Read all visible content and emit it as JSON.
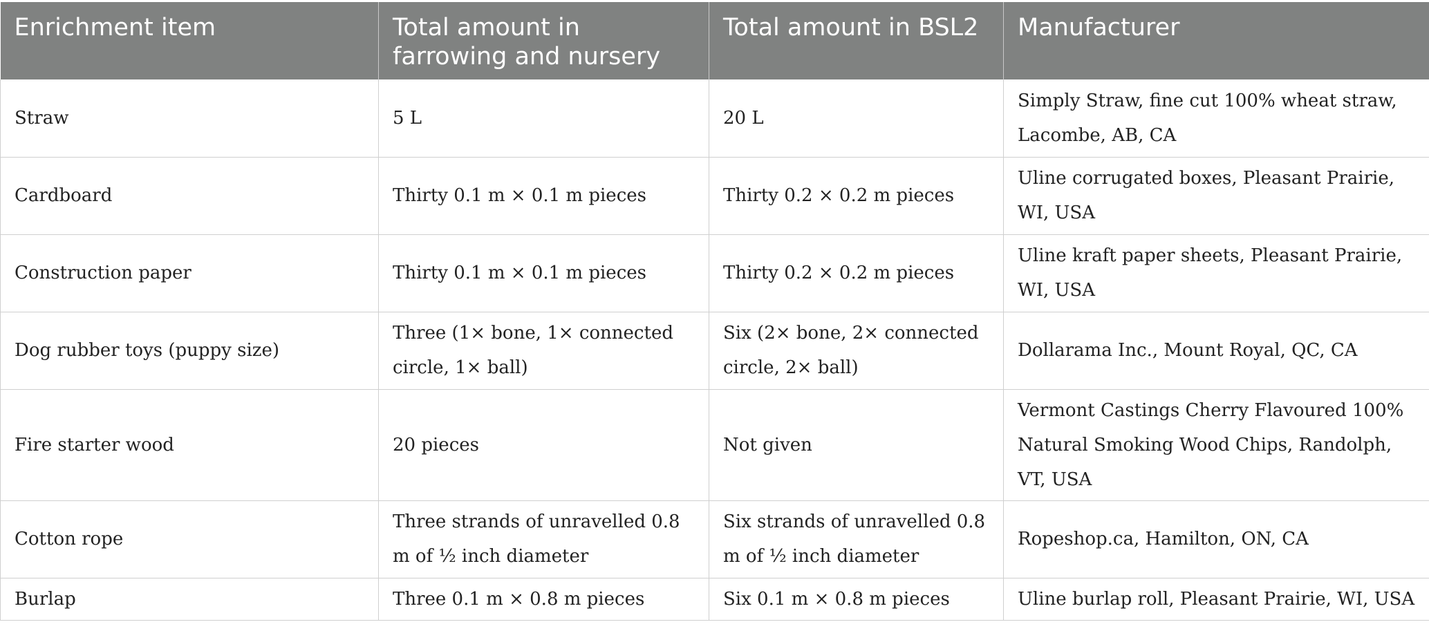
{
  "table": {
    "headers": [
      "Enrichment item",
      "Total amount in farrowing and nursery",
      "Total amount in BSL2",
      "Manufacturer"
    ],
    "rows": [
      {
        "item": "Straw",
        "farrowing_nursery": "5 L",
        "bsl2": "20 L",
        "manufacturer": "Simply Straw, fine cut 100% wheat straw, Lacombe, AB, CA"
      },
      {
        "item": "Cardboard",
        "farrowing_nursery": "Thirty 0.1 m × 0.1 m pieces",
        "bsl2": "Thirty 0.2 × 0.2 m pieces",
        "manufacturer": "Uline corrugated boxes, Pleasant Prairie, WI, USA"
      },
      {
        "item": "Construction paper",
        "farrowing_nursery": "Thirty 0.1 m × 0.1 m pieces",
        "bsl2": "Thirty 0.2 × 0.2 m pieces",
        "manufacturer": "Uline kraft paper sheets, Pleasant Prairie, WI, USA"
      },
      {
        "item": "Dog rubber toys (puppy size)",
        "farrowing_nursery": "Three (1× bone, 1× connected circle, 1× ball)",
        "bsl2": "Six (2× bone, 2× connected circle, 2× ball)",
        "manufacturer": "Dollarama Inc., Mount Royal, QC, CA"
      },
      {
        "item": "Fire starter wood",
        "farrowing_nursery": "20 pieces",
        "bsl2": "Not given",
        "manufacturer": "Vermont Castings Cherry Flavoured 100% Natural Smoking Wood Chips, Randolph, VT, USA"
      },
      {
        "item": "Cotton rope",
        "farrowing_nursery": "Three strands of unravelled 0.8 m of ½ inch diameter",
        "bsl2": "Six strands of unravelled 0.8 m of ½ inch diameter",
        "manufacturer": "Ropeshop.ca, Hamilton, ON, CA"
      },
      {
        "item": "Burlap",
        "farrowing_nursery": "Three 0.1 m × 0.8 m pieces",
        "bsl2": "Six 0.1 m × 0.8 m pieces",
        "manufacturer": "Uline burlap roll, Pleasant Prairie, WI, USA"
      }
    ]
  },
  "colors": {
    "header_background": "#808281",
    "header_text": "#ffffff",
    "grid_line": "#cfcfcf",
    "body_text": "#222222"
  }
}
